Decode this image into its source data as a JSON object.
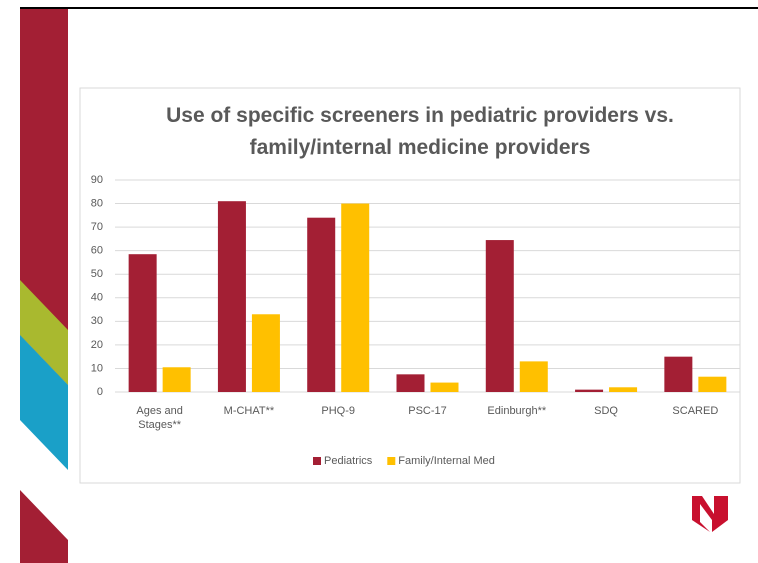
{
  "chart_data": {
    "type": "bar",
    "title": "Use of specific screeners in pediatric providers vs. family/internal medicine providers",
    "categories": [
      "Ages and Stages**",
      "M-CHAT**",
      "PHQ-9",
      "PSC-17",
      "Edinburgh**",
      "SDQ",
      "SCARED"
    ],
    "series": [
      {
        "name": "Pediatrics",
        "color": "#a31f34",
        "values": [
          58.5,
          81,
          74,
          7.5,
          64.5,
          1,
          15
        ]
      },
      {
        "name": "Family/Internal Med",
        "color": "#ffc000",
        "values": [
          10.5,
          33,
          80,
          4,
          13,
          2,
          6.5
        ]
      }
    ],
    "ylim": [
      0,
      90
    ],
    "yticks": [
      0,
      10,
      20,
      30,
      40,
      50,
      60,
      70,
      80,
      90
    ],
    "grid": true,
    "legend": "bottom"
  }
}
